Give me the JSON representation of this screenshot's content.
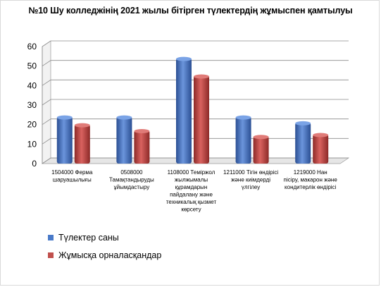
{
  "chart_data": {
    "type": "bar",
    "title": "№10 Шу колледжінің 2021 жылы бітірген түлектердің жұмыспен қамтылуы",
    "categories": [
      [
        "1504000 Ферма",
        "шаруашылығы"
      ],
      [
        "0508000",
        "Тамақтандыруды",
        "ұйымдастыру"
      ],
      [
        "1108000 Теміржол",
        "жылжымалы",
        "құрамдарын",
        "пайдалану және",
        "техникалық қызмет",
        "көрсету"
      ],
      [
        "1211000 Тігін өндірісі",
        "және киімдерді",
        "үлгілеу"
      ],
      [
        "1219000 Нан",
        "пісіру, макарон және",
        "кондитерлік өндірісі"
      ]
    ],
    "series": [
      {
        "name": "Түлектер саны",
        "values": [
          24,
          24,
          54,
          24,
          21
        ],
        "color": "#4a7ac9"
      },
      {
        "name": "Жұмысқа орналасқандар",
        "values": [
          20,
          17,
          45,
          14,
          15
        ],
        "color": "#c0504d"
      }
    ],
    "ylim": [
      0,
      60
    ],
    "yticks": [
      0,
      10,
      20,
      30,
      40,
      50,
      60
    ],
    "grid": true,
    "legend_position": "bottom-left"
  }
}
